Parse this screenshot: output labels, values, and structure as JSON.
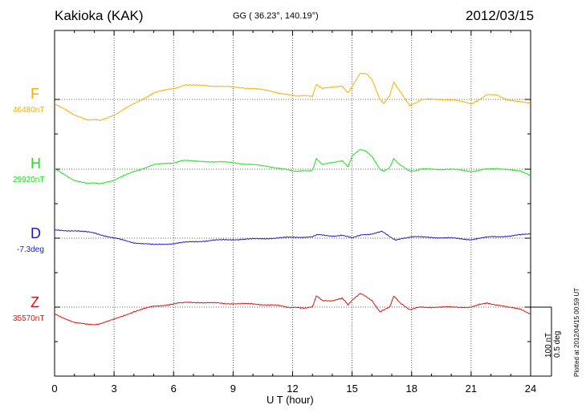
{
  "header": {
    "station": "Kakioka (KAK)",
    "coords": "GG ( 36.23°, 140.19°)",
    "date": "2012/03/15"
  },
  "plotted_note": "Plotted at 2012/04/15 00:59 UT",
  "scale": {
    "line1": "100 nT",
    "line2": "0.5 deg"
  },
  "chart_data": {
    "type": "line",
    "xlabel": "U T (hour)",
    "xlim": [
      0,
      24
    ],
    "x_ticks": [
      "0",
      "3",
      "6",
      "9",
      "12",
      "15",
      "18",
      "21",
      "24"
    ],
    "grid": true,
    "series": [
      {
        "name": "F",
        "baseline_label": "46480nT",
        "color": "#f5b000",
        "x": [
          0,
          1,
          1.7,
          2.3,
          3,
          4,
          5,
          6,
          6.6,
          7.5,
          9,
          10,
          11,
          11.8,
          12.4,
          13,
          13.2,
          13.5,
          14,
          14.5,
          14.8,
          15,
          15.4,
          15.7,
          16,
          16.4,
          16.6,
          16.9,
          17.1,
          17.4,
          17.9,
          18.5,
          19,
          20,
          21,
          21.8,
          22.3,
          22.8,
          23.5,
          24
        ],
        "values": [
          -10,
          -35,
          -46,
          -47,
          -35,
          -10,
          15,
          25,
          32,
          32,
          28,
          25,
          18,
          10,
          8,
          8,
          35,
          25,
          27,
          31,
          15,
          30,
          60,
          58,
          45,
          0,
          -10,
          10,
          40,
          20,
          -15,
          0,
          0,
          0,
          -10,
          10,
          10,
          0,
          -5,
          -10
        ]
      },
      {
        "name": "H",
        "baseline_label": "29920nT",
        "color": "#22dd22",
        "x": [
          0,
          1,
          1.7,
          2.3,
          3,
          4,
          5,
          6,
          6.6,
          7.5,
          9,
          10,
          11,
          11.8,
          12.4,
          13,
          13.2,
          13.5,
          14,
          14.5,
          14.8,
          15,
          15.4,
          15.7,
          16,
          16.4,
          16.6,
          16.9,
          17.1,
          17.4,
          17.9,
          18.5,
          19,
          20,
          21,
          21.8,
          22.3,
          22.8,
          23.5,
          24
        ],
        "values": [
          0,
          -25,
          -32,
          -32,
          -25,
          -5,
          10,
          15,
          20,
          18,
          15,
          10,
          5,
          -2,
          -5,
          -2,
          25,
          10,
          15,
          20,
          5,
          30,
          45,
          40,
          30,
          0,
          -5,
          5,
          25,
          10,
          -5,
          0,
          0,
          0,
          -5,
          0,
          2,
          0,
          -5,
          -15
        ]
      },
      {
        "name": "D",
        "baseline_label": "-7.3deg",
        "color": "#1a1acc",
        "x": [
          0,
          1,
          2,
          3,
          4,
          5,
          6,
          7,
          8,
          9,
          10,
          11,
          12,
          13,
          13.3,
          14,
          14.5,
          15,
          15.5,
          16,
          16.5,
          17,
          17.2,
          17.5,
          18,
          19,
          20,
          21,
          22,
          23,
          24
        ],
        "values": [
          18,
          17,
          12,
          0,
          -10,
          -15,
          -12,
          -8,
          -5,
          -3,
          -2,
          0,
          2,
          3,
          8,
          5,
          7,
          0,
          8,
          10,
          15,
          0,
          -5,
          0,
          3,
          2,
          0,
          -3,
          3,
          5,
          10
        ]
      },
      {
        "name": "Z",
        "baseline_label": "35570nT",
        "color": "#dd1111",
        "x": [
          0,
          1,
          1.7,
          2.3,
          3,
          4,
          5,
          6,
          6.6,
          7.5,
          9,
          10,
          11,
          11.8,
          12.4,
          13,
          13.2,
          13.5,
          14,
          14.5,
          14.8,
          15,
          15.4,
          15.7,
          16,
          16.4,
          16.6,
          16.9,
          17.1,
          17.4,
          17.9,
          18.5,
          19,
          20,
          21,
          21.8,
          22.3,
          22.8,
          23.5,
          24
        ],
        "values": [
          -15,
          -35,
          -40,
          -38,
          -28,
          -10,
          2,
          7,
          12,
          10,
          8,
          7,
          5,
          0,
          -2,
          0,
          25,
          15,
          15,
          20,
          5,
          15,
          30,
          25,
          15,
          -10,
          -5,
          0,
          25,
          10,
          -5,
          0,
          0,
          0,
          0,
          10,
          5,
          0,
          -5,
          -15
        ]
      }
    ]
  }
}
